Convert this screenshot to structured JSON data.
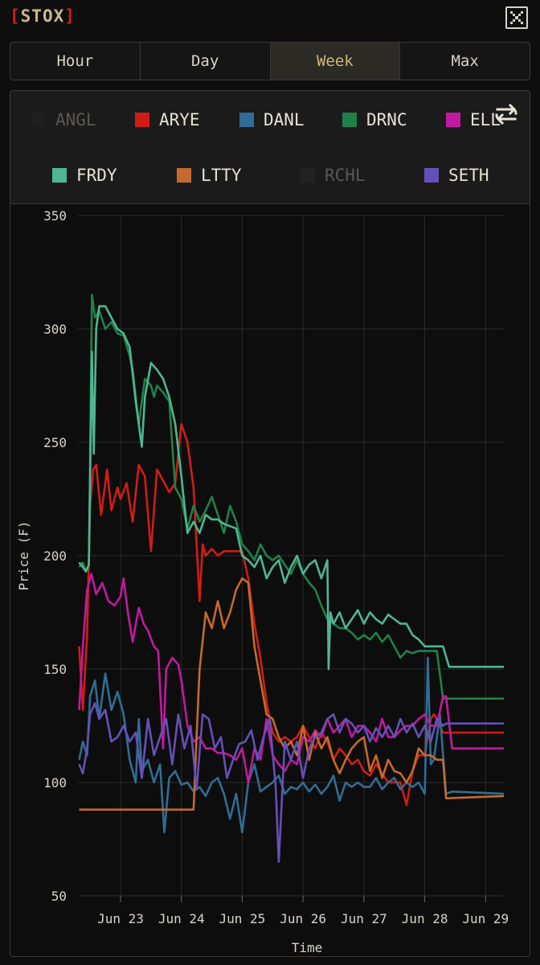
{
  "app": {
    "bracket_left": "[",
    "name": "STOX",
    "bracket_right": "]"
  },
  "tabs": [
    {
      "label": "Hour",
      "active": false
    },
    {
      "label": "Day",
      "active": false
    },
    {
      "label": "Week",
      "active": true
    },
    {
      "label": "Max",
      "active": false
    }
  ],
  "legend": [
    {
      "name": "ANGL",
      "color": "#1e1e1e",
      "visible": false
    },
    {
      "name": "ARYE",
      "color": "#cf1d16",
      "visible": true
    },
    {
      "name": "DANL",
      "color": "#2f6d96",
      "visible": true
    },
    {
      "name": "DRNC",
      "color": "#20804a",
      "visible": true
    },
    {
      "name": "ELL",
      "color": "#c01aa0",
      "visible": true
    },
    {
      "name": "FRDY",
      "color": "#4fb693",
      "visible": true
    },
    {
      "name": "LTTY",
      "color": "#c56a2c",
      "visible": true
    },
    {
      "name": "RCHL",
      "color": "#222222",
      "visible": false
    },
    {
      "name": "SETH",
      "color": "#6450b8",
      "visible": true
    }
  ],
  "chart_data": {
    "type": "line",
    "ylabel": "Price (₣)",
    "xlabel": "Time",
    "ylim": [
      50,
      350
    ],
    "yticks": [
      50,
      100,
      150,
      200,
      250,
      300,
      350
    ],
    "xlim": [
      22.3,
      29.3
    ],
    "xticks": [
      23,
      24,
      25,
      26,
      27,
      28,
      29
    ],
    "xtick_labels": [
      "Jun 23",
      "Jun 24",
      "Jun 25",
      "Jun 26",
      "Jun 27",
      "Jun 28",
      "Jun 29"
    ],
    "grid": true,
    "series": [
      {
        "name": "ARYE",
        "color": "#cf1d16",
        "x": [
          22.32,
          22.38,
          22.45,
          22.5,
          22.55,
          22.6,
          22.68,
          22.78,
          22.85,
          22.95,
          23.0,
          23.1,
          23.2,
          23.3,
          23.4,
          23.5,
          23.6,
          23.7,
          23.8,
          23.9,
          23.95,
          24.0,
          24.1,
          24.2,
          24.3,
          24.35,
          24.4,
          24.5,
          24.6,
          24.7,
          24.8,
          25.0,
          25.1,
          25.2,
          25.3,
          25.4,
          25.5,
          25.6,
          25.7,
          25.8,
          25.9,
          26.0,
          26.1,
          26.2,
          26.3,
          26.4,
          26.5,
          26.6,
          26.7,
          26.8,
          26.9,
          27.0,
          27.1,
          27.2,
          27.3,
          27.4,
          27.5,
          27.6,
          27.7,
          27.8,
          27.9,
          28.0,
          28.1,
          28.15,
          28.2,
          28.3,
          28.4,
          29.3
        ],
        "y": [
          160,
          132,
          165,
          222,
          238,
          240,
          218,
          238,
          220,
          230,
          225,
          232,
          215,
          240,
          235,
          202,
          238,
          233,
          228,
          232,
          245,
          258,
          250,
          230,
          180,
          205,
          200,
          203,
          200,
          202,
          202,
          202,
          190,
          170,
          155,
          135,
          122,
          118,
          120,
          118,
          120,
          125,
          120,
          115,
          122,
          118,
          110,
          115,
          112,
          108,
          110,
          105,
          103,
          108,
          104,
          100,
          100,
          100,
          90,
          105,
          112,
          112,
          128,
          130,
          128,
          122,
          122,
          122
        ]
      },
      {
        "name": "DANL",
        "color": "#2f6d96",
        "x": [
          22.32,
          22.38,
          22.45,
          22.5,
          22.58,
          22.65,
          22.75,
          22.85,
          22.95,
          23.05,
          23.15,
          23.25,
          23.3,
          23.35,
          23.45,
          23.55,
          23.65,
          23.72,
          23.8,
          23.9,
          24.0,
          24.1,
          24.2,
          24.3,
          24.4,
          24.5,
          24.6,
          24.7,
          24.8,
          24.9,
          25.0,
          25.1,
          25.2,
          25.3,
          25.4,
          25.5,
          25.6,
          25.7,
          25.8,
          25.9,
          26.0,
          26.1,
          26.2,
          26.3,
          26.4,
          26.5,
          26.6,
          26.7,
          26.8,
          26.9,
          27.0,
          27.1,
          27.2,
          27.3,
          27.4,
          27.5,
          27.6,
          27.7,
          27.8,
          27.9,
          28.0,
          28.05,
          28.1,
          28.15,
          28.25,
          28.35,
          28.45,
          29.3
        ],
        "y": [
          110,
          118,
          112,
          138,
          145,
          128,
          148,
          132,
          140,
          130,
          110,
          100,
          128,
          105,
          110,
          100,
          108,
          78,
          102,
          105,
          99,
          100,
          96,
          98,
          94,
          100,
          102,
          95,
          84,
          95,
          78,
          100,
          108,
          96,
          98,
          100,
          103,
          95,
          98,
          97,
          100,
          96,
          99,
          95,
          98,
          103,
          92,
          100,
          98,
          100,
          98,
          98,
          102,
          97,
          100,
          102,
          97,
          100,
          98,
          100,
          95,
          155,
          108,
          110,
          130,
          95,
          96,
          95
        ]
      },
      {
        "name": "DRNC",
        "color": "#20804a",
        "x": [
          22.32,
          22.38,
          22.43,
          22.48,
          22.53,
          22.58,
          22.65,
          22.75,
          22.85,
          22.95,
          23.05,
          23.15,
          23.2,
          23.3,
          23.4,
          23.5,
          23.55,
          23.6,
          23.7,
          23.8,
          23.9,
          24.0,
          24.1,
          24.2,
          24.3,
          24.4,
          24.5,
          24.6,
          24.7,
          24.8,
          24.9,
          25.0,
          25.1,
          25.2,
          25.3,
          25.4,
          25.5,
          25.6,
          25.7,
          25.8,
          25.9,
          26.0,
          26.1,
          26.2,
          26.3,
          26.4,
          26.5,
          26.6,
          26.7,
          26.8,
          26.9,
          27.0,
          27.1,
          27.2,
          27.3,
          27.4,
          27.5,
          27.6,
          27.7,
          27.8,
          27.9,
          28.0,
          28.1,
          28.2,
          28.3,
          28.4,
          29.3
        ],
        "y": [
          195,
          197,
          193,
          196,
          315,
          305,
          308,
          300,
          303,
          298,
          297,
          288,
          282,
          258,
          278,
          275,
          270,
          275,
          272,
          268,
          230,
          225,
          212,
          222,
          215,
          220,
          226,
          218,
          210,
          222,
          215,
          205,
          202,
          198,
          205,
          200,
          198,
          200,
          196,
          192,
          198,
          192,
          188,
          185,
          178,
          172,
          170,
          168,
          168,
          166,
          163,
          165,
          163,
          166,
          162,
          165,
          160,
          155,
          158,
          157,
          158,
          158,
          158,
          158,
          137,
          137,
          137
        ]
      },
      {
        "name": "ELL",
        "color": "#c01aa0",
        "x": [
          22.32,
          22.38,
          22.45,
          22.52,
          22.6,
          22.7,
          22.8,
          22.9,
          23.0,
          23.05,
          23.12,
          23.2,
          23.3,
          23.38,
          23.45,
          23.55,
          23.62,
          23.7,
          23.75,
          23.85,
          23.95,
          24.0,
          24.1,
          24.2,
          24.3,
          24.4,
          24.5,
          24.6,
          24.7,
          24.8,
          24.9,
          25.0,
          25.1,
          25.2,
          25.3,
          25.4,
          25.5,
          25.6,
          25.7,
          25.8,
          25.9,
          26.0,
          26.1,
          26.2,
          26.3,
          26.4,
          26.5,
          26.6,
          26.7,
          26.8,
          26.9,
          27.0,
          27.1,
          27.2,
          27.3,
          27.4,
          27.5,
          27.6,
          27.7,
          27.8,
          27.9,
          28.0,
          28.1,
          28.2,
          28.3,
          28.35,
          28.45,
          29.3
        ],
        "y": [
          132,
          160,
          185,
          192,
          183,
          188,
          180,
          178,
          182,
          190,
          175,
          162,
          177,
          170,
          167,
          160,
          158,
          115,
          150,
          155,
          152,
          145,
          125,
          118,
          120,
          115,
          115,
          113,
          113,
          112,
          110,
          115,
          100,
          115,
          110,
          128,
          112,
          108,
          105,
          110,
          108,
          120,
          118,
          123,
          120,
          128,
          122,
          125,
          128,
          120,
          125,
          125,
          122,
          118,
          128,
          120,
          120,
          123,
          125,
          125,
          128,
          130,
          125,
          125,
          138,
          138,
          115,
          115
        ]
      },
      {
        "name": "FRDY",
        "color": "#4fb693",
        "x": [
          22.32,
          22.38,
          22.43,
          22.48,
          22.53,
          22.56,
          22.6,
          22.65,
          22.75,
          22.85,
          22.95,
          23.05,
          23.15,
          23.25,
          23.35,
          23.4,
          23.5,
          23.6,
          23.7,
          23.8,
          23.9,
          24.0,
          24.1,
          24.2,
          24.3,
          24.4,
          24.5,
          24.6,
          24.7,
          24.8,
          24.9,
          25.0,
          25.1,
          25.2,
          25.3,
          25.4,
          25.5,
          25.6,
          25.7,
          25.8,
          25.9,
          26.0,
          26.1,
          26.2,
          26.3,
          26.4,
          26.42,
          26.45,
          26.5,
          26.6,
          26.7,
          26.8,
          26.9,
          27.0,
          27.1,
          27.2,
          27.3,
          27.4,
          27.5,
          27.6,
          27.7,
          27.8,
          27.9,
          28.0,
          28.1,
          28.2,
          28.3,
          28.4,
          29.3
        ],
        "y": [
          197,
          195,
          193,
          196,
          290,
          245,
          300,
          310,
          310,
          305,
          300,
          298,
          292,
          268,
          248,
          270,
          285,
          282,
          278,
          270,
          258,
          235,
          210,
          215,
          210,
          218,
          216,
          216,
          214,
          213,
          212,
          200,
          198,
          195,
          200,
          190,
          195,
          198,
          188,
          195,
          200,
          192,
          196,
          198,
          190,
          198,
          150,
          175,
          170,
          175,
          168,
          172,
          176,
          170,
          175,
          172,
          170,
          174,
          172,
          170,
          170,
          165,
          163,
          160,
          160,
          160,
          160,
          151,
          151
        ]
      },
      {
        "name": "LTTY",
        "color": "#c56a2c",
        "x": [
          22.32,
          22.4,
          22.5,
          22.6,
          22.7,
          22.8,
          22.9,
          23.0,
          23.2,
          23.4,
          23.6,
          23.8,
          24.0,
          24.2,
          24.25,
          24.3,
          24.4,
          24.5,
          24.6,
          24.7,
          24.8,
          24.9,
          25.0,
          25.1,
          25.2,
          25.3,
          25.4,
          25.5,
          25.6,
          25.7,
          25.8,
          25.9,
          26.0,
          26.1,
          26.2,
          26.3,
          26.4,
          26.5,
          26.6,
          26.7,
          26.8,
          26.9,
          27.0,
          27.1,
          27.2,
          27.3,
          27.4,
          27.5,
          27.6,
          27.7,
          27.8,
          27.9,
          28.0,
          28.1,
          28.2,
          28.3,
          28.35,
          29.3
        ],
        "y": [
          88,
          88,
          88,
          88,
          88,
          88,
          88,
          88,
          88,
          88,
          88,
          88,
          88,
          88,
          120,
          150,
          175,
          168,
          180,
          168,
          175,
          185,
          190,
          188,
          160,
          145,
          130,
          128,
          120,
          115,
          118,
          112,
          125,
          110,
          122,
          115,
          120,
          110,
          104,
          110,
          115,
          118,
          120,
          105,
          112,
          102,
          110,
          105,
          104,
          100,
          105,
          115,
          112,
          112,
          110,
          110,
          93,
          94
        ]
      },
      {
        "name": "SETH",
        "color": "#6450b8",
        "x": [
          22.32,
          22.38,
          22.45,
          22.5,
          22.58,
          22.65,
          22.75,
          22.85,
          22.95,
          23.05,
          23.15,
          23.25,
          23.35,
          23.45,
          23.55,
          23.65,
          23.75,
          23.85,
          23.95,
          24.05,
          24.15,
          24.25,
          24.35,
          24.45,
          24.55,
          24.65,
          24.75,
          24.85,
          24.95,
          25.05,
          25.15,
          25.25,
          25.35,
          25.45,
          25.55,
          25.6,
          25.7,
          25.8,
          25.9,
          26.0,
          26.1,
          26.2,
          26.3,
          26.4,
          26.5,
          26.6,
          26.7,
          26.8,
          26.9,
          27.0,
          27.1,
          27.2,
          27.3,
          27.4,
          27.5,
          27.6,
          27.7,
          27.8,
          27.9,
          28.0,
          28.1,
          28.2,
          28.3,
          28.35,
          28.45,
          29.3
        ],
        "y": [
          108,
          104,
          115,
          130,
          135,
          128,
          132,
          118,
          120,
          125,
          118,
          122,
          102,
          128,
          112,
          120,
          128,
          108,
          130,
          115,
          125,
          97,
          130,
          128,
          115,
          120,
          102,
          110,
          117,
          118,
          123,
          110,
          120,
          128,
          98,
          65,
          118,
          110,
          118,
          102,
          115,
          120,
          122,
          128,
          130,
          122,
          128,
          126,
          122,
          125,
          118,
          124,
          120,
          125,
          120,
          128,
          122,
          126,
          120,
          125,
          118,
          128,
          125,
          126,
          126,
          126
        ]
      }
    ]
  }
}
